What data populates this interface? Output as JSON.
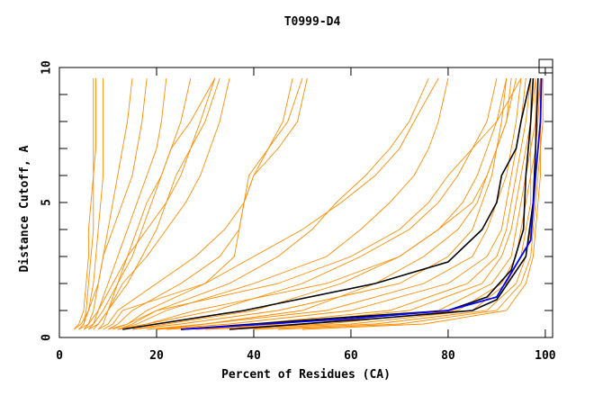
{
  "chart_data": {
    "type": "line",
    "title": "T0999-D4",
    "xlabel": "Percent of Residues (CA)",
    "ylabel": "Distance Cutoff, A",
    "xlim": [
      0,
      101.5
    ],
    "ylim": [
      0,
      10
    ],
    "x_ticks": [
      "0",
      "20",
      "40",
      "60",
      "80",
      "100"
    ],
    "x_tick_values": [
      0,
      20,
      40,
      60,
      80,
      100
    ],
    "y_ticks": [
      "0",
      "5",
      "10"
    ],
    "y_tick_values": [
      0,
      5,
      10
    ],
    "y_minor_step": 1,
    "grid": false,
    "colors": {
      "models": "#ff8c00",
      "highlight": "#000000",
      "reference": "#0000ff"
    },
    "y_levels": [
      0.3,
      0.5,
      1,
      2,
      3,
      4,
      5,
      6,
      7,
      8,
      9.6
    ],
    "orange_series_x": [
      [
        3,
        4,
        5,
        5.5,
        6,
        6,
        6.5,
        7,
        7,
        7,
        7
      ],
      [
        4,
        5,
        5.5,
        6,
        6.5,
        7,
        7,
        7,
        7.5,
        7.5,
        7.5
      ],
      [
        3,
        4.5,
        6,
        7,
        7.5,
        8,
        8.5,
        9,
        9,
        9,
        9
      ],
      [
        5,
        6,
        7,
        8,
        9,
        10,
        11,
        12,
        13,
        14,
        15
      ],
      [
        4,
        5,
        6,
        8,
        9,
        11,
        13,
        15,
        16,
        17,
        18
      ],
      [
        6,
        7,
        8,
        10,
        12,
        14,
        16,
        18,
        20,
        21,
        22
      ],
      [
        5,
        7,
        9,
        12,
        14,
        16,
        18,
        21,
        23,
        25,
        27
      ],
      [
        7,
        8,
        10,
        14,
        17,
        20,
        22,
        25,
        27,
        29,
        32
      ],
      [
        6,
        8,
        10,
        13,
        18,
        22,
        26,
        29,
        31,
        33,
        35
      ],
      [
        8,
        9,
        10,
        12,
        15,
        17,
        19,
        21,
        23,
        27,
        32
      ],
      [
        4,
        6,
        8,
        11,
        14,
        18,
        22,
        24,
        27,
        30,
        33
      ],
      [
        8,
        10,
        12,
        20,
        28,
        34,
        38,
        40,
        43,
        46,
        48
      ],
      [
        10,
        12,
        15,
        25,
        33,
        37,
        38,
        40,
        45,
        49,
        51
      ],
      [
        9,
        11,
        13,
        30,
        36,
        37,
        38,
        39,
        43,
        47,
        50
      ],
      [
        12,
        15,
        20,
        35,
        45,
        52,
        57,
        63,
        68,
        72,
        76
      ],
      [
        10,
        14,
        18,
        30,
        40,
        50,
        58,
        65,
        70,
        73,
        78
      ],
      [
        12,
        16,
        22,
        40,
        55,
        62,
        68,
        73,
        76,
        78,
        80
      ],
      [
        11,
        14,
        20,
        45,
        60,
        70,
        76,
        80,
        85,
        90,
        95
      ],
      [
        13,
        18,
        28,
        55,
        70,
        78,
        85,
        88,
        90,
        92,
        94
      ],
      [
        15,
        25,
        45,
        70,
        80,
        85,
        87,
        89,
        90,
        91,
        92
      ],
      [
        18,
        30,
        55,
        75,
        85,
        88,
        90,
        92,
        93,
        94,
        95
      ],
      [
        20,
        35,
        60,
        80,
        88,
        91,
        92,
        93,
        94,
        95,
        96
      ],
      [
        22,
        40,
        68,
        84,
        90,
        92,
        93,
        94,
        95,
        96,
        97
      ],
      [
        25,
        45,
        72,
        87,
        91,
        93,
        94,
        95,
        96,
        97,
        97
      ],
      [
        28,
        50,
        78,
        89,
        93,
        94,
        95,
        96,
        97,
        97,
        98
      ],
      [
        30,
        55,
        82,
        91,
        94,
        95,
        96,
        97,
        97,
        98,
        98
      ],
      [
        35,
        60,
        85,
        92,
        95,
        96,
        97,
        97,
        98,
        98,
        99
      ],
      [
        40,
        65,
        88,
        94,
        96,
        97,
        97.5,
        98,
        98,
        98.5,
        99
      ],
      [
        45,
        70,
        90,
        95,
        97,
        97.5,
        98,
        98.5,
        99,
        99,
        99
      ],
      [
        50,
        75,
        92,
        96,
        97.5,
        98,
        98.5,
        99,
        99,
        99.5,
        99.5
      ],
      [
        20,
        30,
        50,
        65,
        75,
        82,
        86,
        88,
        90,
        92,
        93
      ],
      [
        15,
        22,
        40,
        58,
        70,
        78,
        83,
        86,
        88,
        90,
        92
      ],
      [
        12,
        18,
        32,
        50,
        62,
        72,
        78,
        82,
        85,
        88,
        90
      ]
    ],
    "black_series": [
      [
        [
          13,
          0.3
        ],
        [
          20,
          0.5
        ],
        [
          38,
          1
        ],
        [
          65,
          2
        ],
        [
          80,
          2.8
        ],
        [
          87,
          4
        ],
        [
          90,
          5
        ],
        [
          91,
          6
        ],
        [
          94,
          7
        ],
        [
          95,
          8
        ],
        [
          97,
          9.6
        ]
      ],
      [
        [
          25,
          0.3
        ],
        [
          55,
          0.7
        ],
        [
          80,
          1
        ],
        [
          88,
          1.5
        ],
        [
          93,
          2.5
        ],
        [
          95.5,
          4
        ],
        [
          96,
          6
        ],
        [
          97,
          8
        ],
        [
          97.5,
          9.6
        ]
      ],
      [
        [
          35,
          0.3
        ],
        [
          65,
          0.7
        ],
        [
          85,
          1
        ],
        [
          90,
          1.4
        ],
        [
          96,
          3
        ],
        [
          97.5,
          5
        ],
        [
          98,
          7
        ],
        [
          98.5,
          9.6
        ]
      ]
    ],
    "blue_series": [
      [
        25,
        0.3
      ],
      [
        60,
        0.7
      ],
      [
        80,
        1
      ],
      [
        90,
        1.5
      ],
      [
        95,
        3
      ],
      [
        97,
        3.6
      ],
      [
        98,
        6
      ],
      [
        99,
        8
      ],
      [
        99.2,
        9.6
      ]
    ]
  }
}
